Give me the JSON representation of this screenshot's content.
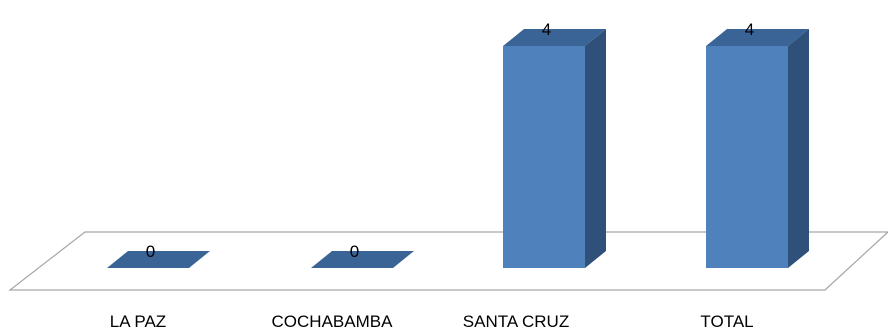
{
  "chart_data": {
    "type": "bar",
    "style": "3d-column",
    "categories": [
      "LA PAZ",
      "COCHABAMBA",
      "SANTA CRUZ",
      "TOTAL"
    ],
    "values": [
      0,
      0,
      4,
      4
    ],
    "data_labels": [
      "0",
      "0",
      "4",
      "4"
    ],
    "title": "",
    "xlabel": "",
    "ylabel": "",
    "ylim": [
      0,
      4
    ],
    "grid": false,
    "legend": "none"
  },
  "colors": {
    "bar_front": "#4f81bd",
    "bar_side": "#2f5079",
    "bar_top": "#3b6496",
    "floor_stroke": "#a6a6a6",
    "floor_fill": "#ffffff"
  }
}
